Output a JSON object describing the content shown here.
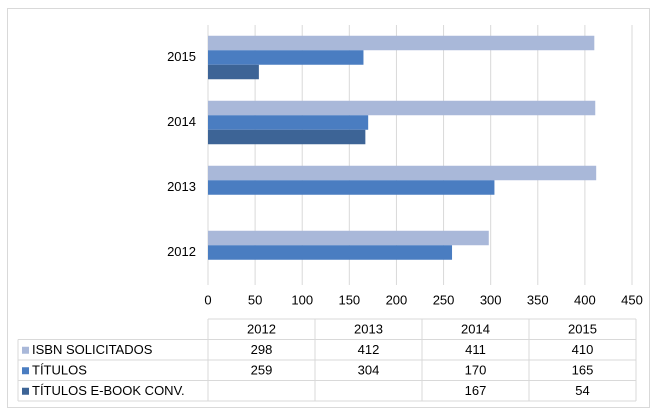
{
  "chart_data": {
    "type": "bar",
    "orientation": "horizontal",
    "categories": [
      "2012",
      "2013",
      "2014",
      "2015"
    ],
    "series": [
      {
        "name": "ISBN SOLICITADOS",
        "color": "#a9b8d9",
        "values": [
          298,
          412,
          411,
          410
        ]
      },
      {
        "name": "TÍTULOS",
        "color": "#4a7dc1",
        "values": [
          259,
          304,
          170,
          165
        ]
      },
      {
        "name": "TÍTULOS E-BOOK CONV.",
        "color": "#3d6496",
        "values": [
          null,
          null,
          167,
          54
        ]
      }
    ],
    "xlim": [
      0,
      450
    ],
    "xticks": [
      0,
      50,
      100,
      150,
      200,
      250,
      300,
      350,
      400,
      450
    ],
    "grid": true,
    "data_table": true
  }
}
